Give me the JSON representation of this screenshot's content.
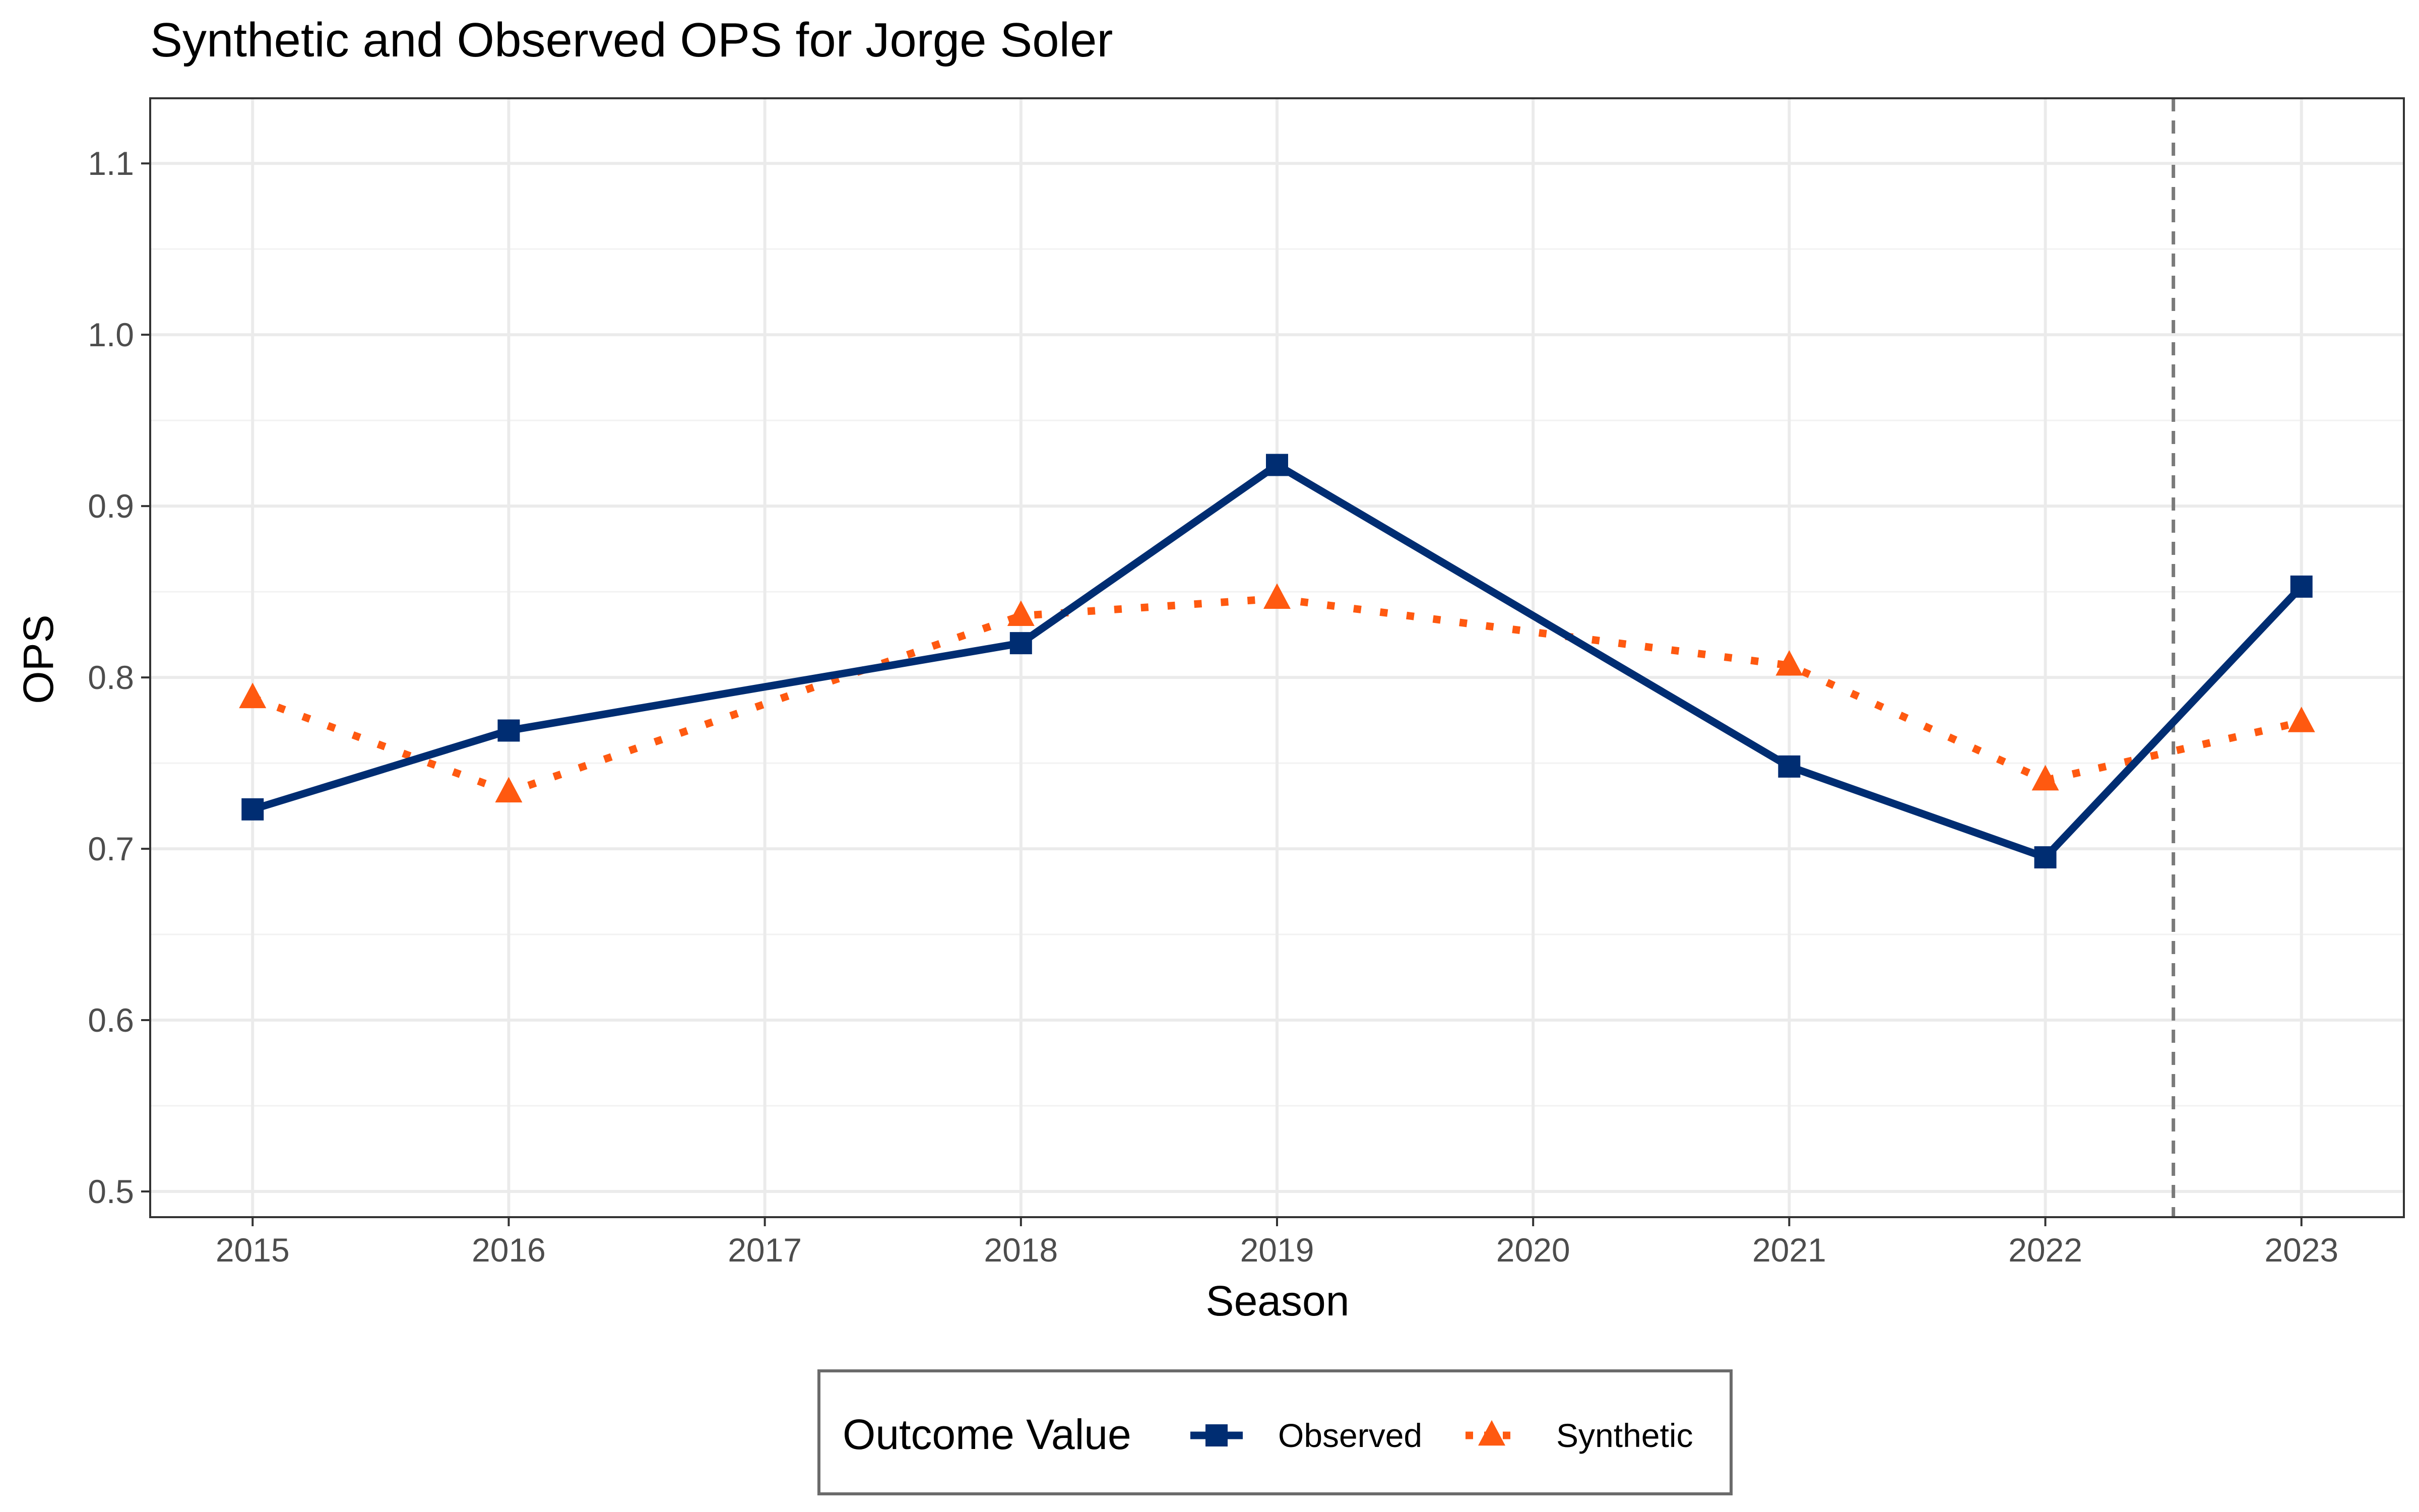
{
  "chart_data": {
    "type": "line",
    "title": "Synthetic and Observed OPS for Jorge Soler",
    "xlabel": "Season",
    "ylabel": "OPS",
    "x": [
      2015,
      2016,
      2017,
      2018,
      2019,
      2020,
      2021,
      2022,
      2023
    ],
    "x_tick_labels": [
      "2015",
      "2016",
      "2017",
      "2018",
      "2019",
      "2020",
      "2021",
      "2022",
      "2023"
    ],
    "y_ticks": [
      0.5,
      0.6,
      0.7,
      0.8,
      0.9,
      1.0,
      1.1
    ],
    "y_tick_labels": [
      "0.5",
      "0.6",
      "0.7",
      "0.8",
      "0.9",
      "1.0",
      "1.1"
    ],
    "xlim": [
      2014.6,
      2023.4
    ],
    "ylim": [
      0.485,
      1.138
    ],
    "grid": true,
    "intervention_x": 2022.5,
    "legend": {
      "title": "Outcome Value",
      "position": "bottom"
    },
    "series": [
      {
        "name": "Observed",
        "color": "#002D72",
        "line_style": "solid",
        "marker": "square",
        "values": [
          {
            "x": 2015,
            "y": 0.723
          },
          {
            "x": 2016,
            "y": 0.769
          },
          {
            "x": 2018,
            "y": 0.82
          },
          {
            "x": 2019,
            "y": 0.924
          },
          {
            "x": 2021,
            "y": 0.748
          },
          {
            "x": 2022,
            "y": 0.695
          },
          {
            "x": 2023,
            "y": 0.853
          }
        ]
      },
      {
        "name": "Synthetic",
        "color": "#FF5910",
        "line_style": "dotted",
        "marker": "triangle",
        "values": [
          {
            "x": 2015,
            "y": 0.788
          },
          {
            "x": 2016,
            "y": 0.733
          },
          {
            "x": 2018,
            "y": 0.836
          },
          {
            "x": 2019,
            "y": 0.846
          },
          {
            "x": 2021,
            "y": 0.807
          },
          {
            "x": 2022,
            "y": 0.74
          },
          {
            "x": 2023,
            "y": 0.774
          }
        ]
      }
    ]
  }
}
